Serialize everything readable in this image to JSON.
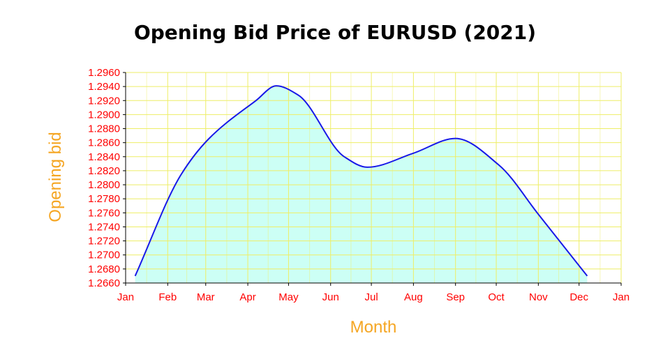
{
  "chart_data": {
    "type": "area",
    "title": "Opening Bid Price of EURUSD (2021)",
    "xlabel": "Month",
    "ylabel": "Opening bid",
    "x_tick_labels": [
      "Jan",
      "Feb",
      "Mar",
      "Apr",
      "May",
      "Jun",
      "Jul",
      "Aug",
      "Sep",
      "Oct",
      "Nov",
      "Dec",
      "Jan"
    ],
    "y_tick_labels": [
      "1.2660",
      "1.2680",
      "1.2700",
      "1.2720",
      "1.2740",
      "1.2760",
      "1.2780",
      "1.2800",
      "1.2820",
      "1.2840",
      "1.2860",
      "1.2880",
      "1.2900",
      "1.2920",
      "1.2940",
      "1.2960"
    ],
    "ylim": [
      1.266,
      1.296
    ],
    "grid": true,
    "series": [
      {
        "points": [
          {
            "x": "2021-01-08",
            "y": 1.267
          },
          {
            "x": "2021-02-11",
            "y": 1.2815
          },
          {
            "x": "2021-03-03",
            "y": 1.2865
          },
          {
            "x": "2021-04-07",
            "y": 1.292
          },
          {
            "x": "2021-04-22",
            "y": 1.2941
          },
          {
            "x": "2021-05-08",
            "y": 1.2928
          },
          {
            "x": "2021-06-11",
            "y": 1.284
          },
          {
            "x": "2021-06-28",
            "y": 1.2825
          },
          {
            "x": "2021-08-01",
            "y": 1.2845
          },
          {
            "x": "2021-09-01",
            "y": 1.2866
          },
          {
            "x": "2021-10-03",
            "y": 1.2828
          },
          {
            "x": "2021-11-01",
            "y": 1.2758
          },
          {
            "x": "2021-12-07",
            "y": 1.267
          }
        ]
      }
    ],
    "colors": {
      "line": "#1818e8",
      "fill": "#ccfff5",
      "grid": "#eeee66",
      "tick_text": "#ff0000",
      "axis_label": "#f5a623",
      "title": "#000000"
    }
  }
}
